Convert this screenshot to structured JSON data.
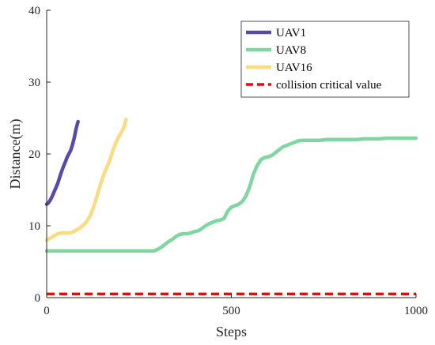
{
  "chart_data": {
    "type": "line",
    "xlabel": "Steps",
    "ylabel": "Distance(m)",
    "xlim": [
      0,
      1000
    ],
    "ylim": [
      0,
      40
    ],
    "xticks": [
      0,
      500,
      1000
    ],
    "yticks": [
      0,
      10,
      20,
      30,
      40
    ],
    "grid": false,
    "legend_position": "top-right",
    "series": [
      {
        "name": "UAV1",
        "color": "#5B4AA4",
        "style": "solid",
        "x": [
          0,
          5,
          10,
          15,
          20,
          25,
          30,
          35,
          40,
          45,
          50,
          55,
          60,
          65,
          70,
          75,
          80,
          85
        ],
        "y": [
          13.0,
          13.2,
          13.6,
          14.1,
          14.7,
          15.3,
          15.9,
          16.7,
          17.5,
          18.2,
          18.8,
          19.5,
          20.0,
          20.5,
          21.3,
          22.3,
          23.6,
          24.5
        ]
      },
      {
        "name": "UAV8",
        "color": "#7ED6A0",
        "style": "solid",
        "x": [
          0,
          50,
          100,
          150,
          200,
          250,
          290,
          300,
          310,
          320,
          330,
          340,
          350,
          360,
          370,
          380,
          390,
          400,
          410,
          420,
          430,
          440,
          450,
          460,
          470,
          480,
          490,
          500,
          510,
          520,
          530,
          540,
          550,
          560,
          570,
          580,
          590,
          600,
          610,
          620,
          630,
          640,
          650,
          660,
          670,
          680,
          690,
          700,
          720,
          740,
          760,
          780,
          800,
          820,
          840,
          860,
          880,
          900,
          920,
          940,
          960,
          980,
          1000
        ],
        "y": [
          6.5,
          6.5,
          6.5,
          6.5,
          6.5,
          6.5,
          6.5,
          6.7,
          7.0,
          7.4,
          7.8,
          8.1,
          8.5,
          8.8,
          8.9,
          8.9,
          9.0,
          9.2,
          9.3,
          9.6,
          10.0,
          10.3,
          10.5,
          10.7,
          10.8,
          11.0,
          12.0,
          12.6,
          12.8,
          13.0,
          13.4,
          14.2,
          15.5,
          17.2,
          18.4,
          19.2,
          19.5,
          19.6,
          19.8,
          20.2,
          20.6,
          21.0,
          21.2,
          21.4,
          21.6,
          21.8,
          21.9,
          21.9,
          21.9,
          21.9,
          22.0,
          22.0,
          22.0,
          22.0,
          22.0,
          22.1,
          22.1,
          22.1,
          22.2,
          22.2,
          22.2,
          22.2,
          22.2
        ]
      },
      {
        "name": "UAV16",
        "color": "#FBDA80",
        "style": "solid",
        "x": [
          0,
          10,
          20,
          30,
          40,
          50,
          60,
          70,
          80,
          90,
          100,
          110,
          120,
          130,
          140,
          150,
          160,
          170,
          180,
          190,
          200,
          210,
          215
        ],
        "y": [
          8.0,
          8.3,
          8.6,
          8.9,
          9.0,
          9.0,
          9.0,
          9.1,
          9.4,
          9.7,
          10.1,
          10.7,
          11.6,
          13.1,
          14.8,
          16.5,
          17.8,
          19.0,
          20.6,
          21.9,
          22.8,
          23.8,
          24.8
        ]
      },
      {
        "name": "collision critical value",
        "color": "#FF0000",
        "style": "dashed",
        "x": [
          0,
          1000
        ],
        "y": [
          0.5,
          0.5
        ]
      }
    ]
  }
}
